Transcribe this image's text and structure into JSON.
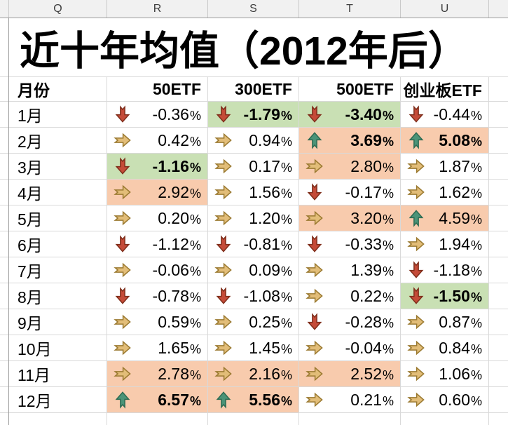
{
  "column_header": {
    "letters": [
      "Q",
      "R",
      "S",
      "T",
      "U"
    ]
  },
  "title": "近十年均值（2012年后）",
  "table": {
    "month_header": "月份",
    "columns": [
      "50ETF",
      "300ETF",
      "500ETF",
      "创业板ETF"
    ],
    "rows": [
      {
        "month": "1月",
        "cells": [
          {
            "arrow": "down",
            "value": "-0.36%",
            "bold": false,
            "bg": "white"
          },
          {
            "arrow": "down",
            "value": "-1.79%",
            "bold": true,
            "bg": "green"
          },
          {
            "arrow": "down",
            "value": "-3.40%",
            "bold": true,
            "bg": "green"
          },
          {
            "arrow": "down",
            "value": "-0.44%",
            "bold": false,
            "bg": "white"
          }
        ]
      },
      {
        "month": "2月",
        "cells": [
          {
            "arrow": "right",
            "value": "0.42%",
            "bold": false,
            "bg": "white"
          },
          {
            "arrow": "right",
            "value": "0.94%",
            "bold": false,
            "bg": "white"
          },
          {
            "arrow": "up",
            "value": "3.69%",
            "bold": true,
            "bg": "orange"
          },
          {
            "arrow": "up",
            "value": "5.08%",
            "bold": true,
            "bg": "orange"
          }
        ]
      },
      {
        "month": "3月",
        "cells": [
          {
            "arrow": "down",
            "value": "-1.16%",
            "bold": true,
            "bg": "green"
          },
          {
            "arrow": "right",
            "value": "0.17%",
            "bold": false,
            "bg": "white"
          },
          {
            "arrow": "right",
            "value": "2.80%",
            "bold": false,
            "bg": "orange"
          },
          {
            "arrow": "right",
            "value": "1.87%",
            "bold": false,
            "bg": "white"
          }
        ]
      },
      {
        "month": "4月",
        "cells": [
          {
            "arrow": "right",
            "value": "2.92%",
            "bold": false,
            "bg": "orange"
          },
          {
            "arrow": "right",
            "value": "1.56%",
            "bold": false,
            "bg": "white"
          },
          {
            "arrow": "down",
            "value": "-0.17%",
            "bold": false,
            "bg": "white"
          },
          {
            "arrow": "right",
            "value": "1.62%",
            "bold": false,
            "bg": "white"
          }
        ]
      },
      {
        "month": "5月",
        "cells": [
          {
            "arrow": "right",
            "value": "0.20%",
            "bold": false,
            "bg": "white"
          },
          {
            "arrow": "right",
            "value": "1.20%",
            "bold": false,
            "bg": "white"
          },
          {
            "arrow": "right",
            "value": "3.20%",
            "bold": false,
            "bg": "orange"
          },
          {
            "arrow": "up",
            "value": "4.59%",
            "bold": false,
            "bg": "orange"
          }
        ]
      },
      {
        "month": "6月",
        "cells": [
          {
            "arrow": "down",
            "value": "-1.12%",
            "bold": false,
            "bg": "white"
          },
          {
            "arrow": "down",
            "value": "-0.81%",
            "bold": false,
            "bg": "white"
          },
          {
            "arrow": "down",
            "value": "-0.33%",
            "bold": false,
            "bg": "white"
          },
          {
            "arrow": "right",
            "value": "1.94%",
            "bold": false,
            "bg": "white"
          }
        ]
      },
      {
        "month": "7月",
        "cells": [
          {
            "arrow": "right",
            "value": "-0.06%",
            "bold": false,
            "bg": "white"
          },
          {
            "arrow": "right",
            "value": "0.09%",
            "bold": false,
            "bg": "white"
          },
          {
            "arrow": "right",
            "value": "1.39%",
            "bold": false,
            "bg": "white"
          },
          {
            "arrow": "down",
            "value": "-1.18%",
            "bold": false,
            "bg": "white"
          }
        ]
      },
      {
        "month": "8月",
        "cells": [
          {
            "arrow": "down",
            "value": "-0.78%",
            "bold": false,
            "bg": "white"
          },
          {
            "arrow": "down",
            "value": "-1.08%",
            "bold": false,
            "bg": "white"
          },
          {
            "arrow": "right",
            "value": "0.22%",
            "bold": false,
            "bg": "white"
          },
          {
            "arrow": "down",
            "value": "-1.50%",
            "bold": true,
            "bg": "green"
          }
        ]
      },
      {
        "month": "9月",
        "cells": [
          {
            "arrow": "right",
            "value": "0.59%",
            "bold": false,
            "bg": "white"
          },
          {
            "arrow": "right",
            "value": "0.25%",
            "bold": false,
            "bg": "white"
          },
          {
            "arrow": "down",
            "value": "-0.28%",
            "bold": false,
            "bg": "white"
          },
          {
            "arrow": "right",
            "value": "0.87%",
            "bold": false,
            "bg": "white"
          }
        ]
      },
      {
        "month": "10月",
        "cells": [
          {
            "arrow": "right",
            "value": "1.65%",
            "bold": false,
            "bg": "white"
          },
          {
            "arrow": "right",
            "value": "1.45%",
            "bold": false,
            "bg": "white"
          },
          {
            "arrow": "right",
            "value": "-0.04%",
            "bold": false,
            "bg": "white"
          },
          {
            "arrow": "right",
            "value": "0.84%",
            "bold": false,
            "bg": "white"
          }
        ]
      },
      {
        "month": "11月",
        "cells": [
          {
            "arrow": "right",
            "value": "2.78%",
            "bold": false,
            "bg": "orange"
          },
          {
            "arrow": "right",
            "value": "2.16%",
            "bold": false,
            "bg": "orange"
          },
          {
            "arrow": "right",
            "value": "2.52%",
            "bold": false,
            "bg": "orange"
          },
          {
            "arrow": "right",
            "value": "1.06%",
            "bold": false,
            "bg": "white"
          }
        ]
      },
      {
        "month": "12月",
        "cells": [
          {
            "arrow": "up",
            "value": "6.57%",
            "bold": true,
            "bg": "orange"
          },
          {
            "arrow": "up",
            "value": "5.56%",
            "bold": true,
            "bg": "orange"
          },
          {
            "arrow": "right",
            "value": "0.21%",
            "bold": false,
            "bg": "white"
          },
          {
            "arrow": "right",
            "value": "0.60%",
            "bold": false,
            "bg": "white"
          }
        ]
      }
    ]
  },
  "colors": {
    "highlight_green": "#c9e0b4",
    "highlight_orange": "#f8cbad",
    "arrow_down_red": "#c54b38",
    "arrow_right_yellow": "#e2bd78",
    "arrow_up_green": "#4b9478",
    "gridline": "#d9d9d9",
    "header_strip": "#f1f1f1"
  }
}
